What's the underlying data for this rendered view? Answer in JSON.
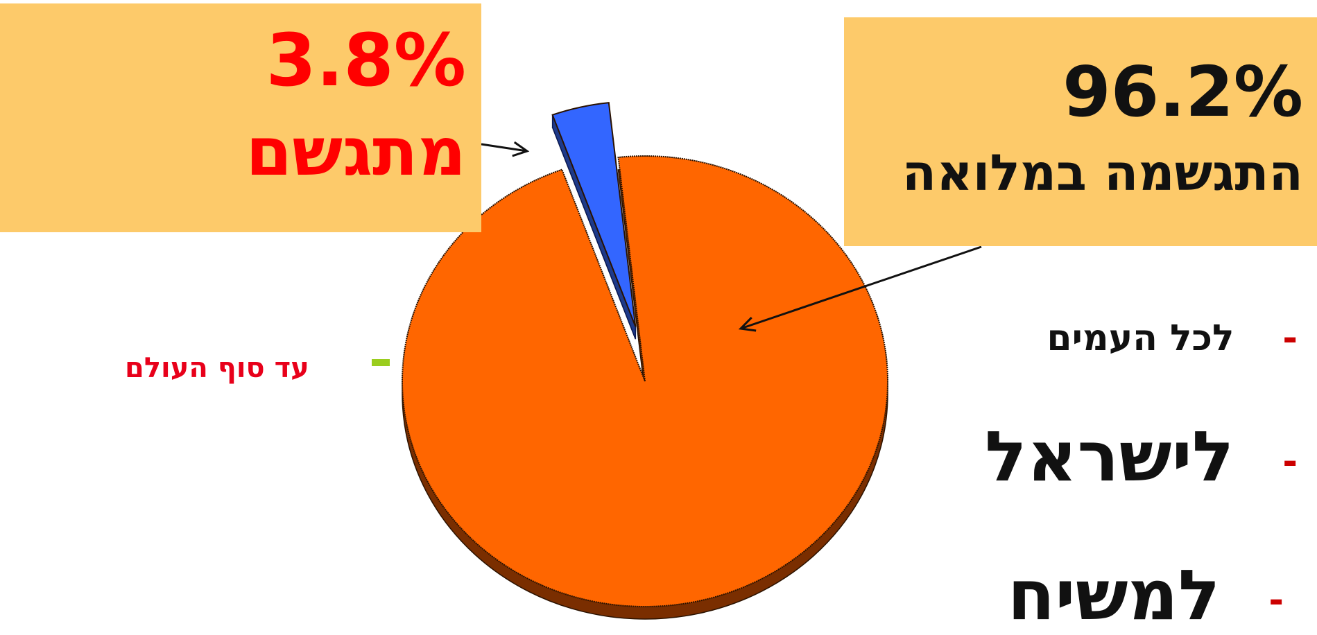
{
  "chart_data": {
    "type": "pie",
    "categories": [
      "מתגשם",
      "התגשמה במלואה"
    ],
    "values": [
      3.8,
      96.2
    ],
    "value_labels": [
      "3.8%",
      "96.2%"
    ],
    "colors": [
      "#3366ff",
      "#ff6600"
    ],
    "title": "",
    "legend": "none",
    "three_d": true,
    "exploded_slice": 0
  },
  "callouts": {
    "small": {
      "value": "3.8%",
      "caption": "מתגשם"
    },
    "large": {
      "value": "96.2%",
      "caption": "התגשמה במלואה"
    }
  },
  "bullets": [
    {
      "marker": "-",
      "text": "לכל העמים"
    },
    {
      "marker": "-",
      "text": "לישראל"
    },
    {
      "marker": "-",
      "text": "למשיח"
    }
  ],
  "side_note": {
    "marker": "-",
    "text": "עד סוף העולם"
  },
  "colors": {
    "callout_bg": "#fdca6a",
    "accent_red": "#ff0000",
    "orange_side": "#7a2e00",
    "blue_side": "#1e3a8a",
    "green_dash": "#9acd1e"
  }
}
